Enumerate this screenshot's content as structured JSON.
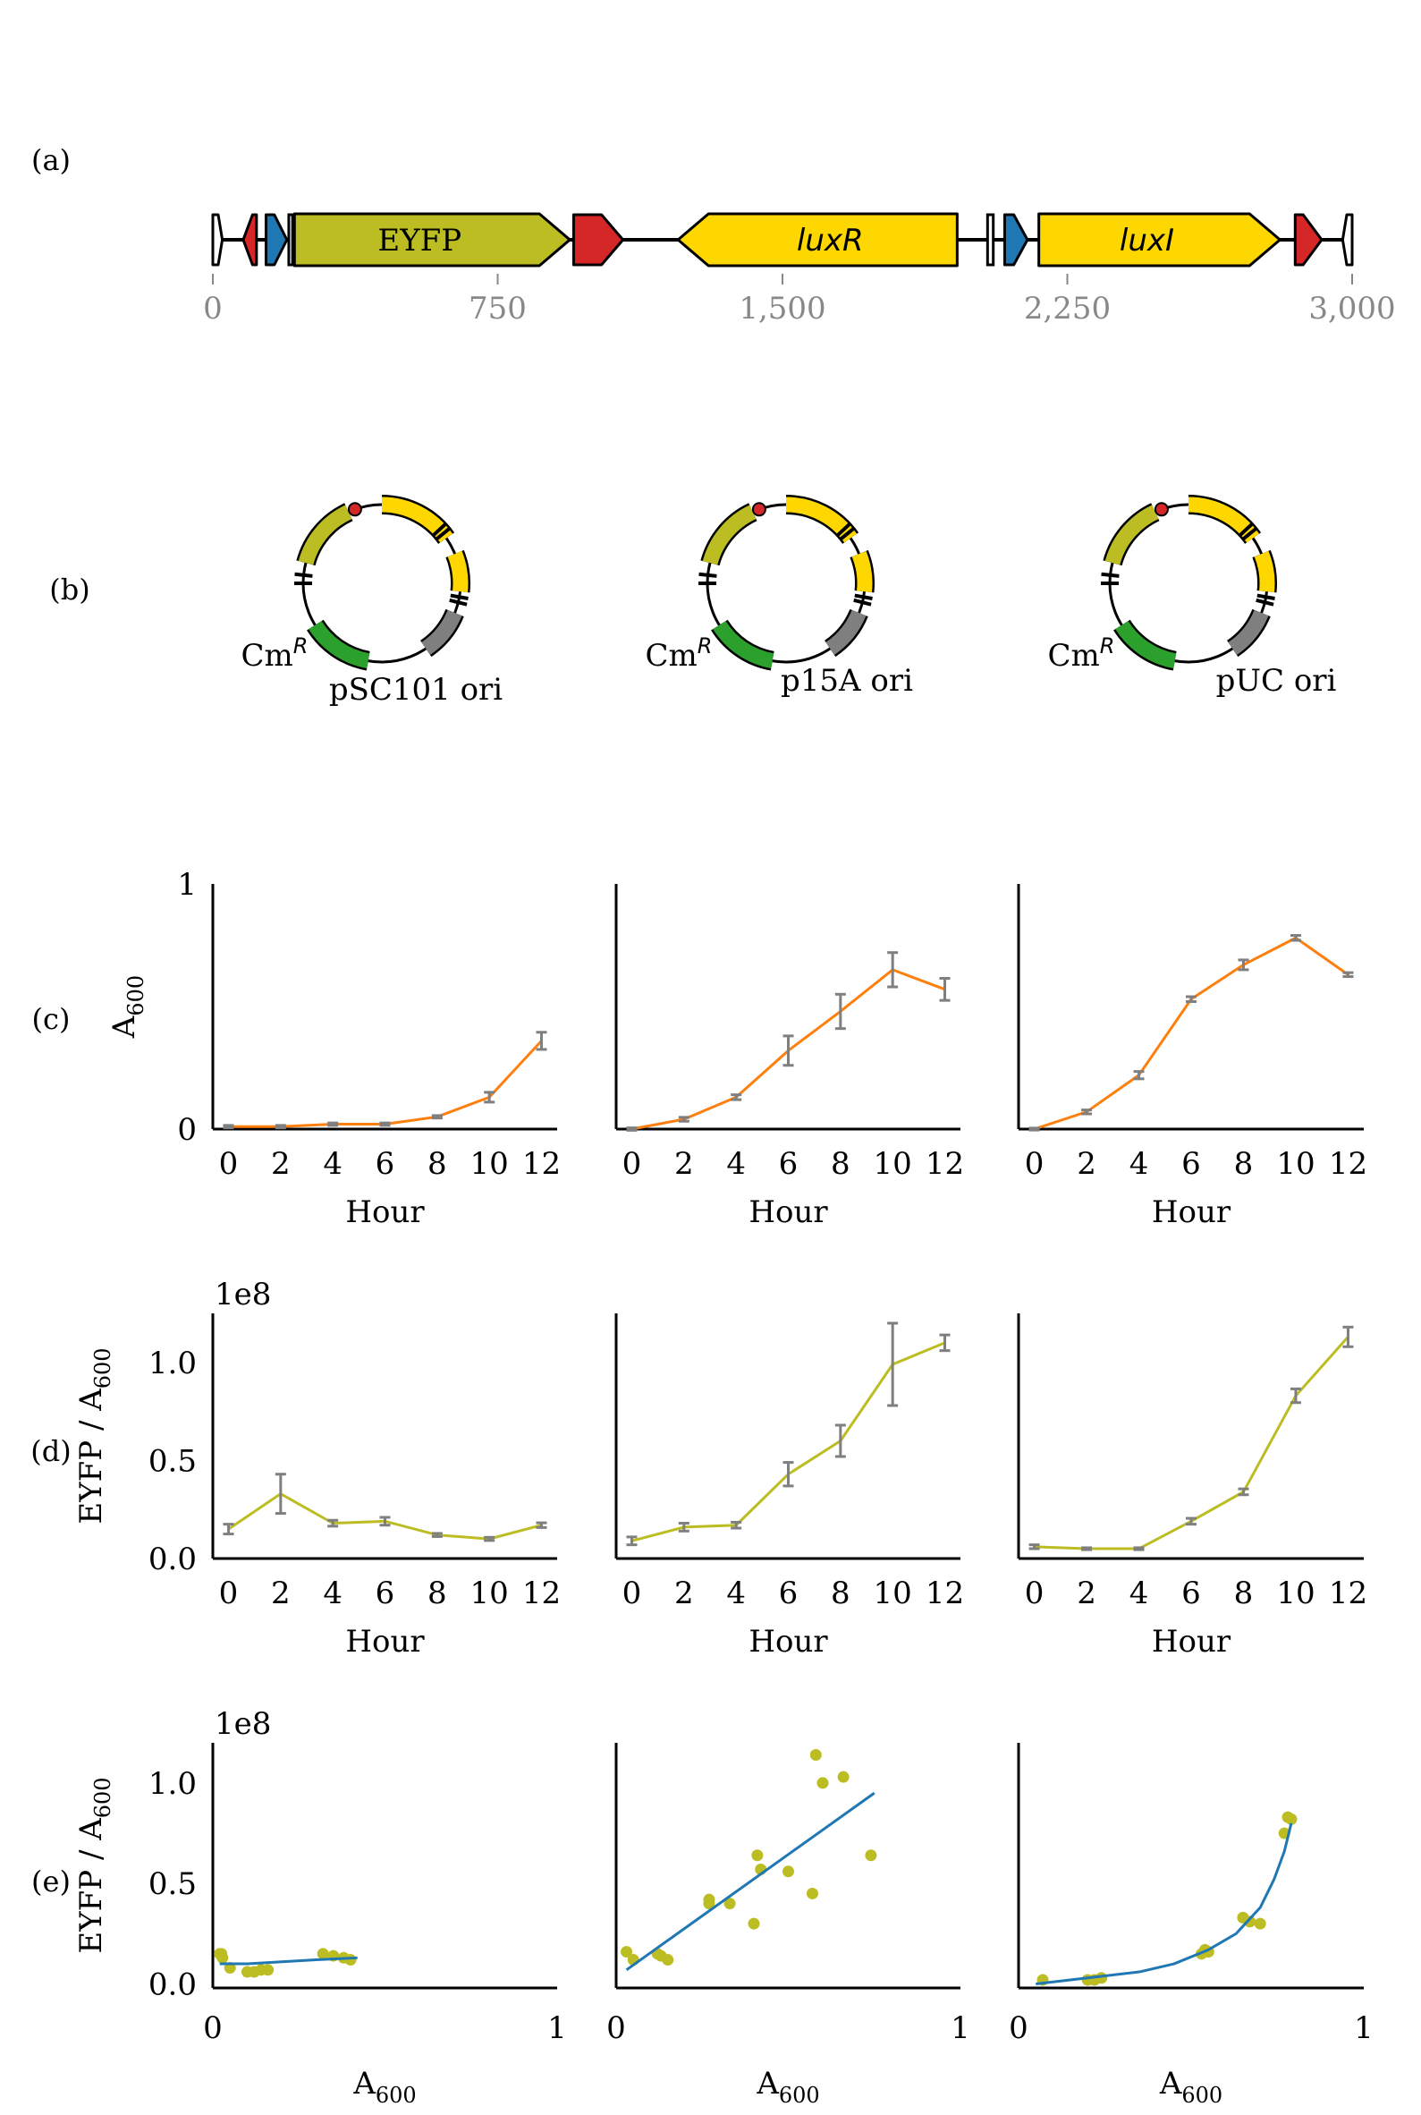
{
  "panels": {
    "a": "(a)",
    "b": "(b)",
    "c": "(c)",
    "d": "(d)",
    "e": "(e)"
  },
  "colors": {
    "terminator": "#d62728",
    "promoter": "#1f77b4",
    "eyfp": "#bcbd22",
    "lux": "#ffd700",
    "cmr": "#2ca02c",
    "ori": "#7f7f7f",
    "growth_line": "#ff7f0e",
    "fluor_line": "#bcbd22",
    "fit_line": "#1f77b4",
    "error_bar": "#7f7f7f",
    "axis_gray": "#888888"
  },
  "construct": {
    "axis_ticks": [
      {
        "value": 0,
        "label": "0"
      },
      {
        "value": 750,
        "label": "750"
      },
      {
        "value": 1500,
        "label": "1,500"
      },
      {
        "value": 2250,
        "label": "2,250"
      },
      {
        "value": 3000,
        "label": "3,000"
      }
    ],
    "parts": [
      {
        "type": "end",
        "start": 0,
        "end": 25,
        "dir": "left"
      },
      {
        "type": "terminator",
        "start": 80,
        "end": 115,
        "dir": "left"
      },
      {
        "type": "promoter",
        "start": 140,
        "end": 195,
        "dir": "right"
      },
      {
        "type": "rbs",
        "start": 200,
        "end": 210,
        "dir": "none"
      },
      {
        "type": "eyfp",
        "start": 215,
        "end": 940,
        "dir": "right",
        "label": "EYFP"
      },
      {
        "type": "terminator",
        "start": 950,
        "end": 1080,
        "dir": "right"
      },
      {
        "type": "lux",
        "start": 1225,
        "end": 1960,
        "dir": "left",
        "label": "luxR"
      },
      {
        "type": "rbs",
        "start": 2040,
        "end": 2055,
        "dir": "none"
      },
      {
        "type": "promoter",
        "start": 2085,
        "end": 2145,
        "dir": "right"
      },
      {
        "type": "lux",
        "start": 2175,
        "end": 2810,
        "dir": "right",
        "label": "luxI"
      },
      {
        "type": "terminator",
        "start": 2850,
        "end": 2920,
        "dir": "right"
      },
      {
        "type": "end",
        "start": 2975,
        "end": 3000,
        "dir": "left"
      }
    ]
  },
  "plasmids": [
    {
      "ori": "pSC101 ori",
      "marker": "Cm",
      "marker_sup": "R"
    },
    {
      "ori": "p15A ori",
      "marker": "Cm",
      "marker_sup": "R"
    },
    {
      "ori": "pUC ori",
      "marker": "Cm",
      "marker_sup": "R"
    }
  ],
  "chart_data": [
    {
      "type": "line",
      "panel": "c",
      "ylabel": "A",
      "ylabel_sub": "600",
      "xlabel": "Hour",
      "ylim": [
        0,
        1
      ],
      "yticks": [
        {
          "value": 0,
          "label": "0"
        },
        {
          "value": 1,
          "label": "1"
        }
      ],
      "xlim": [
        -0.6,
        12.6
      ],
      "xticks": [
        0,
        2,
        4,
        6,
        8,
        10,
        12
      ],
      "series": [
        {
          "x": [
            0,
            2,
            4,
            6,
            8,
            10,
            12
          ],
          "y": [
            0.01,
            0.01,
            0.02,
            0.02,
            0.05,
            0.13,
            0.36
          ],
          "err": [
            0.005,
            0.005,
            0.005,
            0.005,
            0.005,
            0.02,
            0.035
          ]
        },
        {
          "x": [
            0,
            2,
            4,
            6,
            8,
            10,
            12
          ],
          "y": [
            0.0,
            0.04,
            0.13,
            0.32,
            0.48,
            0.65,
            0.57
          ],
          "err": [
            0.005,
            0.008,
            0.01,
            0.06,
            0.07,
            0.07,
            0.045
          ]
        },
        {
          "x": [
            0,
            2,
            4,
            6,
            8,
            10,
            12
          ],
          "y": [
            0.0,
            0.07,
            0.22,
            0.53,
            0.67,
            0.78,
            0.63
          ],
          "err": [
            0.004,
            0.008,
            0.015,
            0.01,
            0.02,
            0.01,
            0.008
          ]
        }
      ]
    },
    {
      "type": "line",
      "panel": "d",
      "ylabel": "EYFP / A",
      "ylabel_sub": "600",
      "multiplier": "1e8",
      "xlabel": "Hour",
      "ylim": [
        0,
        1.25
      ],
      "yticks": [
        {
          "value": 0,
          "label": "0.0"
        },
        {
          "value": 0.5,
          "label": "0.5"
        },
        {
          "value": 1.0,
          "label": "1.0"
        }
      ],
      "xlim": [
        -0.6,
        12.6
      ],
      "xticks": [
        0,
        2,
        4,
        6,
        8,
        10,
        12
      ],
      "series": [
        {
          "x": [
            0,
            2,
            4,
            6,
            8,
            10,
            12
          ],
          "y": [
            0.15,
            0.33,
            0.18,
            0.19,
            0.12,
            0.1,
            0.17
          ],
          "err": [
            0.025,
            0.1,
            0.015,
            0.02,
            0.008,
            0.008,
            0.012
          ]
        },
        {
          "x": [
            0,
            2,
            4,
            6,
            8,
            10,
            12
          ],
          "y": [
            0.09,
            0.16,
            0.17,
            0.43,
            0.6,
            0.99,
            1.1
          ],
          "err": [
            0.02,
            0.02,
            0.015,
            0.06,
            0.08,
            0.21,
            0.04
          ]
        },
        {
          "x": [
            0,
            2,
            4,
            6,
            8,
            10,
            12
          ],
          "y": [
            0.06,
            0.05,
            0.05,
            0.19,
            0.34,
            0.83,
            1.13
          ],
          "err": [
            0.01,
            0.005,
            0.005,
            0.015,
            0.015,
            0.035,
            0.05
          ]
        }
      ]
    },
    {
      "type": "scatter",
      "panel": "e",
      "ylabel": "EYFP / A",
      "ylabel_sub": "600",
      "multiplier": "1e8",
      "xlabel": "A",
      "xlabel_sub": "600",
      "ylim": [
        -0.02,
        1.2
      ],
      "yticks": [
        {
          "value": 0,
          "label": "0.0"
        },
        {
          "value": 0.5,
          "label": "0.5"
        },
        {
          "value": 1.0,
          "label": "1.0"
        }
      ],
      "xlim": [
        0,
        1
      ],
      "xticks": [
        {
          "value": 0,
          "label": "0"
        },
        {
          "value": 1,
          "label": "1"
        }
      ],
      "series": [
        {
          "points": [
            [
              0.02,
              0.15
            ],
            [
              0.025,
              0.15
            ],
            [
              0.028,
              0.13
            ],
            [
              0.05,
              0.08
            ],
            [
              0.1,
              0.06
            ],
            [
              0.12,
              0.06
            ],
            [
              0.14,
              0.07
            ],
            [
              0.16,
              0.07
            ],
            [
              0.32,
              0.15
            ],
            [
              0.35,
              0.14
            ],
            [
              0.38,
              0.13
            ],
            [
              0.4,
              0.12
            ]
          ],
          "fit": [
            [
              0.02,
              0.1
            ],
            [
              0.1,
              0.1
            ],
            [
              0.2,
              0.11
            ],
            [
              0.3,
              0.12
            ],
            [
              0.42,
              0.13
            ]
          ]
        },
        {
          "points": [
            [
              0.03,
              0.16
            ],
            [
              0.05,
              0.12
            ],
            [
              0.12,
              0.15
            ],
            [
              0.13,
              0.14
            ],
            [
              0.15,
              0.12
            ],
            [
              0.27,
              0.42
            ],
            [
              0.27,
              0.4
            ],
            [
              0.33,
              0.4
            ],
            [
              0.4,
              0.3
            ],
            [
              0.41,
              0.64
            ],
            [
              0.42,
              0.57
            ],
            [
              0.5,
              0.56
            ],
            [
              0.57,
              0.45
            ],
            [
              0.58,
              1.14
            ],
            [
              0.6,
              1.0
            ],
            [
              0.66,
              1.03
            ],
            [
              0.74,
              0.64
            ]
          ],
          "fit": [
            [
              0.03,
              0.07
            ],
            [
              0.75,
              0.95
            ]
          ]
        },
        {
          "points": [
            [
              0.07,
              0.02
            ],
            [
              0.2,
              0.02
            ],
            [
              0.22,
              0.02
            ],
            [
              0.24,
              0.03
            ],
            [
              0.53,
              0.15
            ],
            [
              0.54,
              0.17
            ],
            [
              0.55,
              0.16
            ],
            [
              0.65,
              0.33
            ],
            [
              0.67,
              0.31
            ],
            [
              0.7,
              0.3
            ],
            [
              0.77,
              0.75
            ],
            [
              0.78,
              0.83
            ],
            [
              0.79,
              0.82
            ]
          ],
          "fit": [
            [
              0.05,
              0.0
            ],
            [
              0.2,
              0.03
            ],
            [
              0.35,
              0.06
            ],
            [
              0.45,
              0.1
            ],
            [
              0.55,
              0.17
            ],
            [
              0.63,
              0.25
            ],
            [
              0.7,
              0.38
            ],
            [
              0.74,
              0.52
            ],
            [
              0.77,
              0.66
            ],
            [
              0.79,
              0.8
            ]
          ]
        }
      ]
    }
  ]
}
